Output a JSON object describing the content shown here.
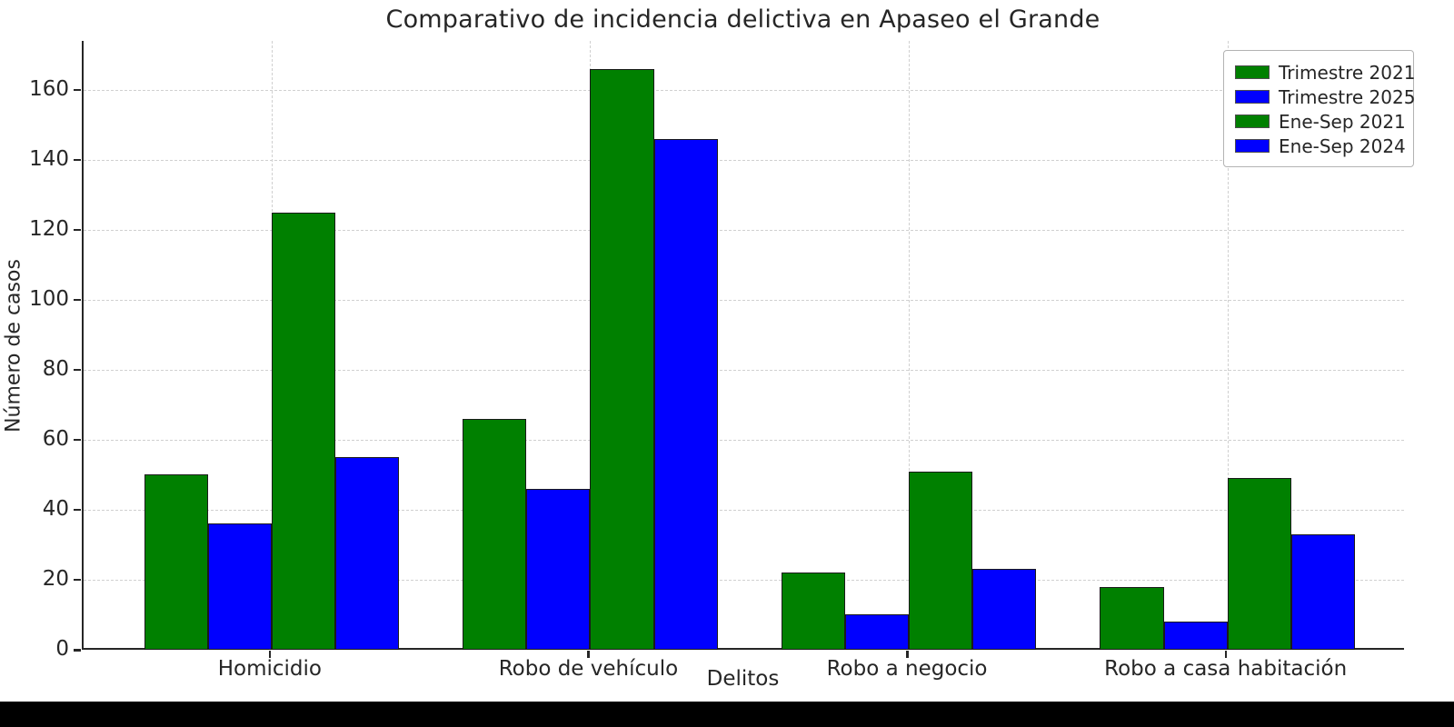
{
  "window": {
    "background_color": "#ffffff",
    "bottom_bar_color": "#000000"
  },
  "chart_data": {
    "type": "bar",
    "title": "Comparativo de incidencia delictiva en Apaseo el Grande",
    "xlabel": "Delitos",
    "ylabel": "Número de casos",
    "categories": [
      "Homicidio",
      "Robo de vehículo",
      "Robo a negocio",
      "Robo a casa habitación"
    ],
    "series": [
      {
        "name": "Trimestre 2021",
        "color": "#008000",
        "values": [
          50,
          66,
          22,
          18
        ]
      },
      {
        "name": "Trimestre 2025",
        "color": "#0000ff",
        "values": [
          36,
          46,
          10,
          8
        ]
      },
      {
        "name": "Ene-Sep 2021",
        "color": "#008000",
        "values": [
          125,
          166,
          51,
          49
        ]
      },
      {
        "name": "Ene-Sep 2024",
        "color": "#0000ff",
        "values": [
          55,
          146,
          23,
          33
        ]
      }
    ],
    "yticks": [
      0,
      20,
      40,
      60,
      80,
      100,
      120,
      140,
      160
    ],
    "ylim": [
      0,
      174
    ],
    "xlim": [
      -0.59,
      3.56
    ],
    "bar_width_units": 0.2,
    "grid": true,
    "grid_style": "dashed",
    "legend_position": "upper right",
    "bar_edge_color": "#1a1a1a",
    "text_color": "#262626"
  }
}
